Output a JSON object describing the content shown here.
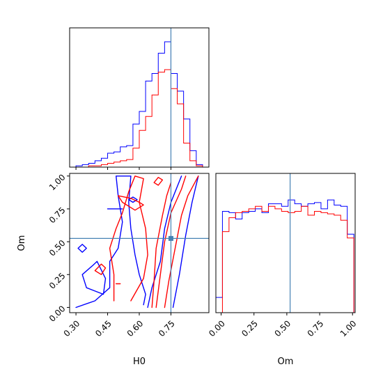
{
  "chart_data": {
    "type": "corner",
    "parameters": [
      "H0",
      "Om"
    ],
    "truths": {
      "H0": 0.75,
      "Om": 0.525
    },
    "truth_color": "#4682b4",
    "series": [
      {
        "color": "#0000ff"
      },
      {
        "color": "#ff0000"
      }
    ],
    "panels": [
      {
        "id": "hist-H0",
        "type": "histogram",
        "xlim": [
          0.27,
          0.93
        ],
        "ylim": [
          0,
          1.1
        ],
        "x_ticks": [
          0.3,
          0.45,
          0.6,
          0.75
        ],
        "show_x_tick_labels": false,
        "bin_edges": [
          0.3,
          0.33,
          0.36,
          0.39,
          0.42,
          0.45,
          0.48,
          0.51,
          0.54,
          0.57,
          0.6,
          0.63,
          0.66,
          0.69,
          0.72,
          0.75,
          0.78,
          0.81,
          0.84,
          0.87,
          0.9
        ],
        "series_values": [
          [
            0.01,
            0.02,
            0.03,
            0.05,
            0.07,
            0.11,
            0.12,
            0.16,
            0.17,
            0.34,
            0.44,
            0.68,
            0.74,
            0.9,
            0.99,
            0.74,
            0.6,
            0.38,
            0.13,
            0.02
          ],
          [
            0.0,
            0.0,
            0.01,
            0.01,
            0.02,
            0.03,
            0.04,
            0.05,
            0.06,
            0.15,
            0.29,
            0.4,
            0.57,
            0.75,
            0.77,
            0.62,
            0.5,
            0.19,
            0.05,
            0.01
          ]
        ]
      },
      {
        "id": "joint-H0-Om",
        "type": "contour",
        "xlim": [
          0.27,
          0.93
        ],
        "ylim": [
          -0.04,
          1.02
        ],
        "x_ticks": [
          0.3,
          0.45,
          0.6,
          0.75
        ],
        "x_tick_labels": [
          "0.30",
          "0.45",
          "0.60",
          "0.75"
        ],
        "y_ticks": [
          0.0,
          0.25,
          0.5,
          0.75,
          1.0
        ],
        "y_tick_labels": [
          "0.00",
          "0.25",
          "0.50",
          "0.75",
          "1.00"
        ],
        "x_label": "H0",
        "y_label": "Om",
        "series_contours": [
          [
            [
              [
                0.76,
                0.0
              ],
              [
                0.79,
                0.25
              ],
              [
                0.82,
                0.55
              ],
              [
                0.85,
                0.8
              ],
              [
                0.88,
                1.0
              ]
            ],
            [
              [
                0.64,
                0.0
              ],
              [
                0.66,
                0.15
              ],
              [
                0.7,
                0.35
              ],
              [
                0.72,
                0.6
              ],
              [
                0.75,
                0.8
              ],
              [
                0.8,
                1.0
              ]
            ],
            [
              [
                0.3,
                0.0
              ],
              [
                0.39,
                0.05
              ],
              [
                0.46,
                0.15
              ],
              [
                0.46,
                0.35
              ],
              [
                0.5,
                0.45
              ],
              [
                0.52,
                0.65
              ],
              [
                0.5,
                0.85
              ],
              [
                0.49,
                1.0
              ],
              [
                0.56,
                1.0
              ],
              [
                0.55,
                0.8
              ],
              [
                0.56,
                0.6
              ],
              [
                0.58,
                0.4
              ],
              [
                0.6,
                0.25
              ],
              [
                0.63,
                0.1
              ],
              [
                0.62,
                0.02
              ]
            ],
            [
              [
                0.4,
                0.35
              ],
              [
                0.44,
                0.22
              ],
              [
                0.43,
                0.1
              ],
              [
                0.35,
                0.15
              ],
              [
                0.33,
                0.25
              ],
              [
                0.38,
                0.32
              ],
              [
                0.4,
                0.35
              ]
            ],
            [
              [
                0.45,
                0.75
              ],
              [
                0.52,
                0.75
              ]
            ],
            [
              [
                0.31,
                0.45
              ],
              [
                0.33,
                0.48
              ],
              [
                0.35,
                0.45
              ],
              [
                0.33,
                0.42
              ],
              [
                0.31,
                0.45
              ]
            ],
            [
              [
                0.55,
                0.82
              ],
              [
                0.57,
                0.84
              ],
              [
                0.59,
                0.82
              ],
              [
                0.57,
                0.8
              ],
              [
                0.55,
                0.82
              ]
            ]
          ],
          [
            [
              [
                0.72,
                0.0
              ],
              [
                0.74,
                0.2
              ],
              [
                0.77,
                0.45
              ],
              [
                0.8,
                0.7
              ],
              [
                0.83,
                0.85
              ],
              [
                0.88,
                1.0
              ]
            ],
            [
              [
                0.68,
                0.0
              ],
              [
                0.7,
                0.25
              ],
              [
                0.72,
                0.5
              ],
              [
                0.75,
                0.72
              ],
              [
                0.8,
                0.9
              ],
              [
                0.82,
                1.0
              ]
            ],
            [
              [
                0.66,
                0.0
              ],
              [
                0.67,
                0.2
              ],
              [
                0.68,
                0.45
              ],
              [
                0.71,
                0.7
              ],
              [
                0.73,
                0.85
              ],
              [
                0.75,
                0.95
              ]
            ],
            [
              [
                0.48,
                0.05
              ],
              [
                0.48,
                0.25
              ],
              [
                0.46,
                0.45
              ],
              [
                0.49,
                0.6
              ],
              [
                0.52,
                0.72
              ],
              [
                0.55,
                0.88
              ],
              [
                0.58,
                1.0
              ],
              [
                0.62,
                0.98
              ],
              [
                0.6,
                0.8
              ],
              [
                0.63,
                0.6
              ],
              [
                0.64,
                0.4
              ],
              [
                0.62,
                0.22
              ],
              [
                0.56,
                0.05
              ]
            ],
            [
              [
                0.5,
                0.85
              ],
              [
                0.56,
                0.83
              ],
              [
                0.6,
                0.8
              ],
              [
                0.62,
                0.78
              ],
              [
                0.58,
                0.74
              ],
              [
                0.52,
                0.8
              ],
              [
                0.5,
                0.85
              ]
            ],
            [
              [
                0.39,
                0.28
              ],
              [
                0.42,
                0.33
              ],
              [
                0.44,
                0.3
              ],
              [
                0.42,
                0.25
              ],
              [
                0.39,
                0.28
              ]
            ],
            [
              [
                0.49,
                0.18
              ],
              [
                0.51,
                0.18
              ]
            ],
            [
              [
                0.67,
                0.95
              ],
              [
                0.69,
                0.99
              ],
              [
                0.71,
                0.97
              ],
              [
                0.69,
                0.93
              ],
              [
                0.67,
                0.95
              ]
            ]
          ]
        ]
      },
      {
        "id": "hist-Om",
        "type": "histogram",
        "xlim": [
          -0.04,
          1.02
        ],
        "ylim": [
          0,
          1.1
        ],
        "x_ticks": [
          0.0,
          0.25,
          0.5,
          0.75,
          1.0
        ],
        "x_tick_labels": [
          "0.00",
          "0.25",
          "0.50",
          "0.75",
          "1.00"
        ],
        "x_label": "Om",
        "bin_edges": [
          -0.04,
          0.01,
          0.06,
          0.11,
          0.16,
          0.21,
          0.26,
          0.31,
          0.36,
          0.41,
          0.46,
          0.51,
          0.56,
          0.61,
          0.66,
          0.71,
          0.76,
          0.81,
          0.86,
          0.91,
          0.96,
          1.01
        ],
        "series_values": [
          [
            0.12,
            0.8,
            0.79,
            0.74,
            0.79,
            0.8,
            0.82,
            0.79,
            0.86,
            0.86,
            0.84,
            0.89,
            0.86,
            0.84,
            0.86,
            0.87,
            0.82,
            0.89,
            0.85,
            0.84,
            0.62
          ],
          [
            0.0,
            0.64,
            0.75,
            0.79,
            0.8,
            0.82,
            0.84,
            0.8,
            0.84,
            0.82,
            0.8,
            0.79,
            0.8,
            0.84,
            0.77,
            0.8,
            0.79,
            0.78,
            0.77,
            0.73,
            0.59
          ]
        ]
      }
    ]
  }
}
